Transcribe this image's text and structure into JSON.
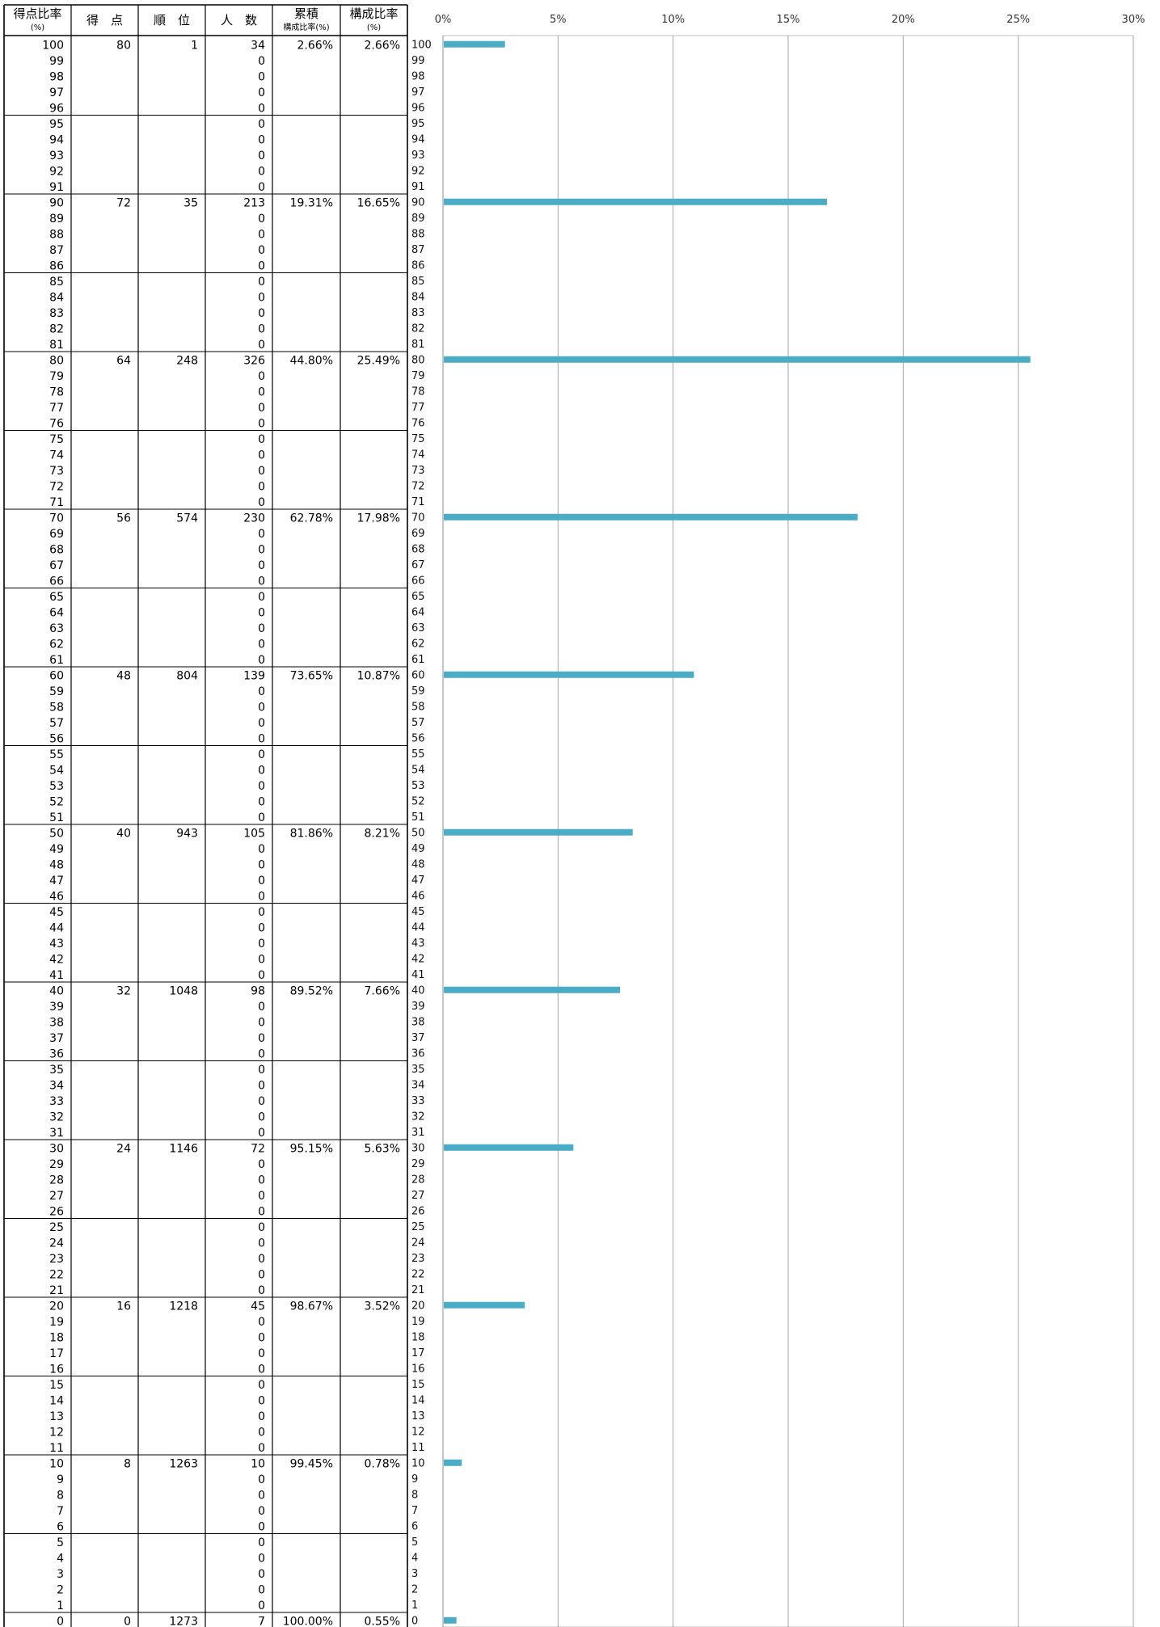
{
  "table": {
    "headers": [
      {
        "main": "得点比率",
        "sub": "(%)"
      },
      {
        "main": "得　点",
        "sub": ""
      },
      {
        "main": "順　位",
        "sub": ""
      },
      {
        "main": "人　数",
        "sub": ""
      },
      {
        "main": "累積",
        "sub": "構成比率(%)"
      },
      {
        "main": "構成比率",
        "sub": "(%)"
      }
    ],
    "rows": [
      {
        "rate": "100",
        "score": "80",
        "rank": "1",
        "count": "34",
        "cum": "2.66%",
        "ratio": "2.66%"
      },
      {
        "rate": "99",
        "score": "",
        "rank": "",
        "count": "0",
        "cum": "",
        "ratio": ""
      },
      {
        "rate": "98",
        "score": "",
        "rank": "",
        "count": "0",
        "cum": "",
        "ratio": ""
      },
      {
        "rate": "97",
        "score": "",
        "rank": "",
        "count": "0",
        "cum": "",
        "ratio": ""
      },
      {
        "rate": "96",
        "score": "",
        "rank": "",
        "count": "0",
        "cum": "",
        "ratio": ""
      },
      {
        "rate": "95",
        "score": "",
        "rank": "",
        "count": "0",
        "cum": "",
        "ratio": ""
      },
      {
        "rate": "94",
        "score": "",
        "rank": "",
        "count": "0",
        "cum": "",
        "ratio": ""
      },
      {
        "rate": "93",
        "score": "",
        "rank": "",
        "count": "0",
        "cum": "",
        "ratio": ""
      },
      {
        "rate": "92",
        "score": "",
        "rank": "",
        "count": "0",
        "cum": "",
        "ratio": ""
      },
      {
        "rate": "91",
        "score": "",
        "rank": "",
        "count": "0",
        "cum": "",
        "ratio": ""
      },
      {
        "rate": "90",
        "score": "72",
        "rank": "35",
        "count": "213",
        "cum": "19.31%",
        "ratio": "16.65%"
      },
      {
        "rate": "89",
        "score": "",
        "rank": "",
        "count": "0",
        "cum": "",
        "ratio": ""
      },
      {
        "rate": "88",
        "score": "",
        "rank": "",
        "count": "0",
        "cum": "",
        "ratio": ""
      },
      {
        "rate": "87",
        "score": "",
        "rank": "",
        "count": "0",
        "cum": "",
        "ratio": ""
      },
      {
        "rate": "86",
        "score": "",
        "rank": "",
        "count": "0",
        "cum": "",
        "ratio": ""
      },
      {
        "rate": "85",
        "score": "",
        "rank": "",
        "count": "0",
        "cum": "",
        "ratio": ""
      },
      {
        "rate": "84",
        "score": "",
        "rank": "",
        "count": "0",
        "cum": "",
        "ratio": ""
      },
      {
        "rate": "83",
        "score": "",
        "rank": "",
        "count": "0",
        "cum": "",
        "ratio": ""
      },
      {
        "rate": "82",
        "score": "",
        "rank": "",
        "count": "0",
        "cum": "",
        "ratio": ""
      },
      {
        "rate": "81",
        "score": "",
        "rank": "",
        "count": "0",
        "cum": "",
        "ratio": ""
      },
      {
        "rate": "80",
        "score": "64",
        "rank": "248",
        "count": "326",
        "cum": "44.80%",
        "ratio": "25.49%"
      },
      {
        "rate": "79",
        "score": "",
        "rank": "",
        "count": "0",
        "cum": "",
        "ratio": ""
      },
      {
        "rate": "78",
        "score": "",
        "rank": "",
        "count": "0",
        "cum": "",
        "ratio": ""
      },
      {
        "rate": "77",
        "score": "",
        "rank": "",
        "count": "0",
        "cum": "",
        "ratio": ""
      },
      {
        "rate": "76",
        "score": "",
        "rank": "",
        "count": "0",
        "cum": "",
        "ratio": ""
      },
      {
        "rate": "75",
        "score": "",
        "rank": "",
        "count": "0",
        "cum": "",
        "ratio": ""
      },
      {
        "rate": "74",
        "score": "",
        "rank": "",
        "count": "0",
        "cum": "",
        "ratio": ""
      },
      {
        "rate": "73",
        "score": "",
        "rank": "",
        "count": "0",
        "cum": "",
        "ratio": ""
      },
      {
        "rate": "72",
        "score": "",
        "rank": "",
        "count": "0",
        "cum": "",
        "ratio": ""
      },
      {
        "rate": "71",
        "score": "",
        "rank": "",
        "count": "0",
        "cum": "",
        "ratio": ""
      },
      {
        "rate": "70",
        "score": "56",
        "rank": "574",
        "count": "230",
        "cum": "62.78%",
        "ratio": "17.98%"
      },
      {
        "rate": "69",
        "score": "",
        "rank": "",
        "count": "0",
        "cum": "",
        "ratio": ""
      },
      {
        "rate": "68",
        "score": "",
        "rank": "",
        "count": "0",
        "cum": "",
        "ratio": ""
      },
      {
        "rate": "67",
        "score": "",
        "rank": "",
        "count": "0",
        "cum": "",
        "ratio": ""
      },
      {
        "rate": "66",
        "score": "",
        "rank": "",
        "count": "0",
        "cum": "",
        "ratio": ""
      },
      {
        "rate": "65",
        "score": "",
        "rank": "",
        "count": "0",
        "cum": "",
        "ratio": ""
      },
      {
        "rate": "64",
        "score": "",
        "rank": "",
        "count": "0",
        "cum": "",
        "ratio": ""
      },
      {
        "rate": "63",
        "score": "",
        "rank": "",
        "count": "0",
        "cum": "",
        "ratio": ""
      },
      {
        "rate": "62",
        "score": "",
        "rank": "",
        "count": "0",
        "cum": "",
        "ratio": ""
      },
      {
        "rate": "61",
        "score": "",
        "rank": "",
        "count": "0",
        "cum": "",
        "ratio": ""
      },
      {
        "rate": "60",
        "score": "48",
        "rank": "804",
        "count": "139",
        "cum": "73.65%",
        "ratio": "10.87%"
      },
      {
        "rate": "59",
        "score": "",
        "rank": "",
        "count": "0",
        "cum": "",
        "ratio": ""
      },
      {
        "rate": "58",
        "score": "",
        "rank": "",
        "count": "0",
        "cum": "",
        "ratio": ""
      },
      {
        "rate": "57",
        "score": "",
        "rank": "",
        "count": "0",
        "cum": "",
        "ratio": ""
      },
      {
        "rate": "56",
        "score": "",
        "rank": "",
        "count": "0",
        "cum": "",
        "ratio": ""
      },
      {
        "rate": "55",
        "score": "",
        "rank": "",
        "count": "0",
        "cum": "",
        "ratio": ""
      },
      {
        "rate": "54",
        "score": "",
        "rank": "",
        "count": "0",
        "cum": "",
        "ratio": ""
      },
      {
        "rate": "53",
        "score": "",
        "rank": "",
        "count": "0",
        "cum": "",
        "ratio": ""
      },
      {
        "rate": "52",
        "score": "",
        "rank": "",
        "count": "0",
        "cum": "",
        "ratio": ""
      },
      {
        "rate": "51",
        "score": "",
        "rank": "",
        "count": "0",
        "cum": "",
        "ratio": ""
      },
      {
        "rate": "50",
        "score": "40",
        "rank": "943",
        "count": "105",
        "cum": "81.86%",
        "ratio": "8.21%"
      },
      {
        "rate": "49",
        "score": "",
        "rank": "",
        "count": "0",
        "cum": "",
        "ratio": ""
      },
      {
        "rate": "48",
        "score": "",
        "rank": "",
        "count": "0",
        "cum": "",
        "ratio": ""
      },
      {
        "rate": "47",
        "score": "",
        "rank": "",
        "count": "0",
        "cum": "",
        "ratio": ""
      },
      {
        "rate": "46",
        "score": "",
        "rank": "",
        "count": "0",
        "cum": "",
        "ratio": ""
      },
      {
        "rate": "45",
        "score": "",
        "rank": "",
        "count": "0",
        "cum": "",
        "ratio": ""
      },
      {
        "rate": "44",
        "score": "",
        "rank": "",
        "count": "0",
        "cum": "",
        "ratio": ""
      },
      {
        "rate": "43",
        "score": "",
        "rank": "",
        "count": "0",
        "cum": "",
        "ratio": ""
      },
      {
        "rate": "42",
        "score": "",
        "rank": "",
        "count": "0",
        "cum": "",
        "ratio": ""
      },
      {
        "rate": "41",
        "score": "",
        "rank": "",
        "count": "0",
        "cum": "",
        "ratio": ""
      },
      {
        "rate": "40",
        "score": "32",
        "rank": "1048",
        "count": "98",
        "cum": "89.52%",
        "ratio": "7.66%"
      },
      {
        "rate": "39",
        "score": "",
        "rank": "",
        "count": "0",
        "cum": "",
        "ratio": ""
      },
      {
        "rate": "38",
        "score": "",
        "rank": "",
        "count": "0",
        "cum": "",
        "ratio": ""
      },
      {
        "rate": "37",
        "score": "",
        "rank": "",
        "count": "0",
        "cum": "",
        "ratio": ""
      },
      {
        "rate": "36",
        "score": "",
        "rank": "",
        "count": "0",
        "cum": "",
        "ratio": ""
      },
      {
        "rate": "35",
        "score": "",
        "rank": "",
        "count": "0",
        "cum": "",
        "ratio": ""
      },
      {
        "rate": "34",
        "score": "",
        "rank": "",
        "count": "0",
        "cum": "",
        "ratio": ""
      },
      {
        "rate": "33",
        "score": "",
        "rank": "",
        "count": "0",
        "cum": "",
        "ratio": ""
      },
      {
        "rate": "32",
        "score": "",
        "rank": "",
        "count": "0",
        "cum": "",
        "ratio": ""
      },
      {
        "rate": "31",
        "score": "",
        "rank": "",
        "count": "0",
        "cum": "",
        "ratio": ""
      },
      {
        "rate": "30",
        "score": "24",
        "rank": "1146",
        "count": "72",
        "cum": "95.15%",
        "ratio": "5.63%"
      },
      {
        "rate": "29",
        "score": "",
        "rank": "",
        "count": "0",
        "cum": "",
        "ratio": ""
      },
      {
        "rate": "28",
        "score": "",
        "rank": "",
        "count": "0",
        "cum": "",
        "ratio": ""
      },
      {
        "rate": "27",
        "score": "",
        "rank": "",
        "count": "0",
        "cum": "",
        "ratio": ""
      },
      {
        "rate": "26",
        "score": "",
        "rank": "",
        "count": "0",
        "cum": "",
        "ratio": ""
      },
      {
        "rate": "25",
        "score": "",
        "rank": "",
        "count": "0",
        "cum": "",
        "ratio": ""
      },
      {
        "rate": "24",
        "score": "",
        "rank": "",
        "count": "0",
        "cum": "",
        "ratio": ""
      },
      {
        "rate": "23",
        "score": "",
        "rank": "",
        "count": "0",
        "cum": "",
        "ratio": ""
      },
      {
        "rate": "22",
        "score": "",
        "rank": "",
        "count": "0",
        "cum": "",
        "ratio": ""
      },
      {
        "rate": "21",
        "score": "",
        "rank": "",
        "count": "0",
        "cum": "",
        "ratio": ""
      },
      {
        "rate": "20",
        "score": "16",
        "rank": "1218",
        "count": "45",
        "cum": "98.67%",
        "ratio": "3.52%"
      },
      {
        "rate": "19",
        "score": "",
        "rank": "",
        "count": "0",
        "cum": "",
        "ratio": ""
      },
      {
        "rate": "18",
        "score": "",
        "rank": "",
        "count": "0",
        "cum": "",
        "ratio": ""
      },
      {
        "rate": "17",
        "score": "",
        "rank": "",
        "count": "0",
        "cum": "",
        "ratio": ""
      },
      {
        "rate": "16",
        "score": "",
        "rank": "",
        "count": "0",
        "cum": "",
        "ratio": ""
      },
      {
        "rate": "15",
        "score": "",
        "rank": "",
        "count": "0",
        "cum": "",
        "ratio": ""
      },
      {
        "rate": "14",
        "score": "",
        "rank": "",
        "count": "0",
        "cum": "",
        "ratio": ""
      },
      {
        "rate": "13",
        "score": "",
        "rank": "",
        "count": "0",
        "cum": "",
        "ratio": ""
      },
      {
        "rate": "12",
        "score": "",
        "rank": "",
        "count": "0",
        "cum": "",
        "ratio": ""
      },
      {
        "rate": "11",
        "score": "",
        "rank": "",
        "count": "0",
        "cum": "",
        "ratio": ""
      },
      {
        "rate": "10",
        "score": "8",
        "rank": "1263",
        "count": "10",
        "cum": "99.45%",
        "ratio": "0.78%"
      },
      {
        "rate": "9",
        "score": "",
        "rank": "",
        "count": "0",
        "cum": "",
        "ratio": ""
      },
      {
        "rate": "8",
        "score": "",
        "rank": "",
        "count": "0",
        "cum": "",
        "ratio": ""
      },
      {
        "rate": "7",
        "score": "",
        "rank": "",
        "count": "0",
        "cum": "",
        "ratio": ""
      },
      {
        "rate": "6",
        "score": "",
        "rank": "",
        "count": "0",
        "cum": "",
        "ratio": ""
      },
      {
        "rate": "5",
        "score": "",
        "rank": "",
        "count": "0",
        "cum": "",
        "ratio": ""
      },
      {
        "rate": "4",
        "score": "",
        "rank": "",
        "count": "0",
        "cum": "",
        "ratio": ""
      },
      {
        "rate": "3",
        "score": "",
        "rank": "",
        "count": "0",
        "cum": "",
        "ratio": ""
      },
      {
        "rate": "2",
        "score": "",
        "rank": "",
        "count": "0",
        "cum": "",
        "ratio": ""
      },
      {
        "rate": "1",
        "score": "",
        "rank": "",
        "count": "0",
        "cum": "",
        "ratio": ""
      },
      {
        "rate": "0",
        "score": "0",
        "rank": "1273",
        "count": "7",
        "cum": "100.00%",
        "ratio": "0.55%"
      }
    ]
  },
  "chart_data": {
    "type": "bar",
    "orientation": "horizontal",
    "title": "",
    "xlabel": "",
    "ylabel": "",
    "xlim": [
      0,
      30
    ],
    "x_ticks": [
      "0%",
      "5%",
      "10%",
      "15%",
      "20%",
      "25%",
      "30%"
    ],
    "grid": true,
    "bar_color": "#4BACC6",
    "categories": [
      "100",
      "99",
      "98",
      "97",
      "96",
      "95",
      "94",
      "93",
      "92",
      "91",
      "90",
      "89",
      "88",
      "87",
      "86",
      "85",
      "84",
      "83",
      "82",
      "81",
      "80",
      "79",
      "78",
      "77",
      "76",
      "75",
      "74",
      "73",
      "72",
      "71",
      "70",
      "69",
      "68",
      "67",
      "66",
      "65",
      "64",
      "63",
      "62",
      "61",
      "60",
      "59",
      "58",
      "57",
      "56",
      "55",
      "54",
      "53",
      "52",
      "51",
      "50",
      "49",
      "48",
      "47",
      "46",
      "45",
      "44",
      "43",
      "42",
      "41",
      "40",
      "39",
      "38",
      "37",
      "36",
      "35",
      "34",
      "33",
      "32",
      "31",
      "30",
      "29",
      "28",
      "27",
      "26",
      "25",
      "24",
      "23",
      "22",
      "21",
      "20",
      "19",
      "18",
      "17",
      "16",
      "15",
      "14",
      "13",
      "12",
      "11",
      "10",
      "9",
      "8",
      "7",
      "6",
      "5",
      "4",
      "3",
      "2",
      "1",
      "0"
    ],
    "values": [
      2.66,
      0,
      0,
      0,
      0,
      0,
      0,
      0,
      0,
      0,
      16.65,
      0,
      0,
      0,
      0,
      0,
      0,
      0,
      0,
      0,
      25.49,
      0,
      0,
      0,
      0,
      0,
      0,
      0,
      0,
      0,
      17.98,
      0,
      0,
      0,
      0,
      0,
      0,
      0,
      0,
      0,
      10.87,
      0,
      0,
      0,
      0,
      0,
      0,
      0,
      0,
      0,
      8.21,
      0,
      0,
      0,
      0,
      0,
      0,
      0,
      0,
      0,
      7.66,
      0,
      0,
      0,
      0,
      0,
      0,
      0,
      0,
      0,
      5.63,
      0,
      0,
      0,
      0,
      0,
      0,
      0,
      0,
      0,
      3.52,
      0,
      0,
      0,
      0,
      0,
      0,
      0,
      0,
      0,
      0.78,
      0,
      0,
      0,
      0,
      0,
      0,
      0,
      0,
      0,
      0.55
    ]
  }
}
